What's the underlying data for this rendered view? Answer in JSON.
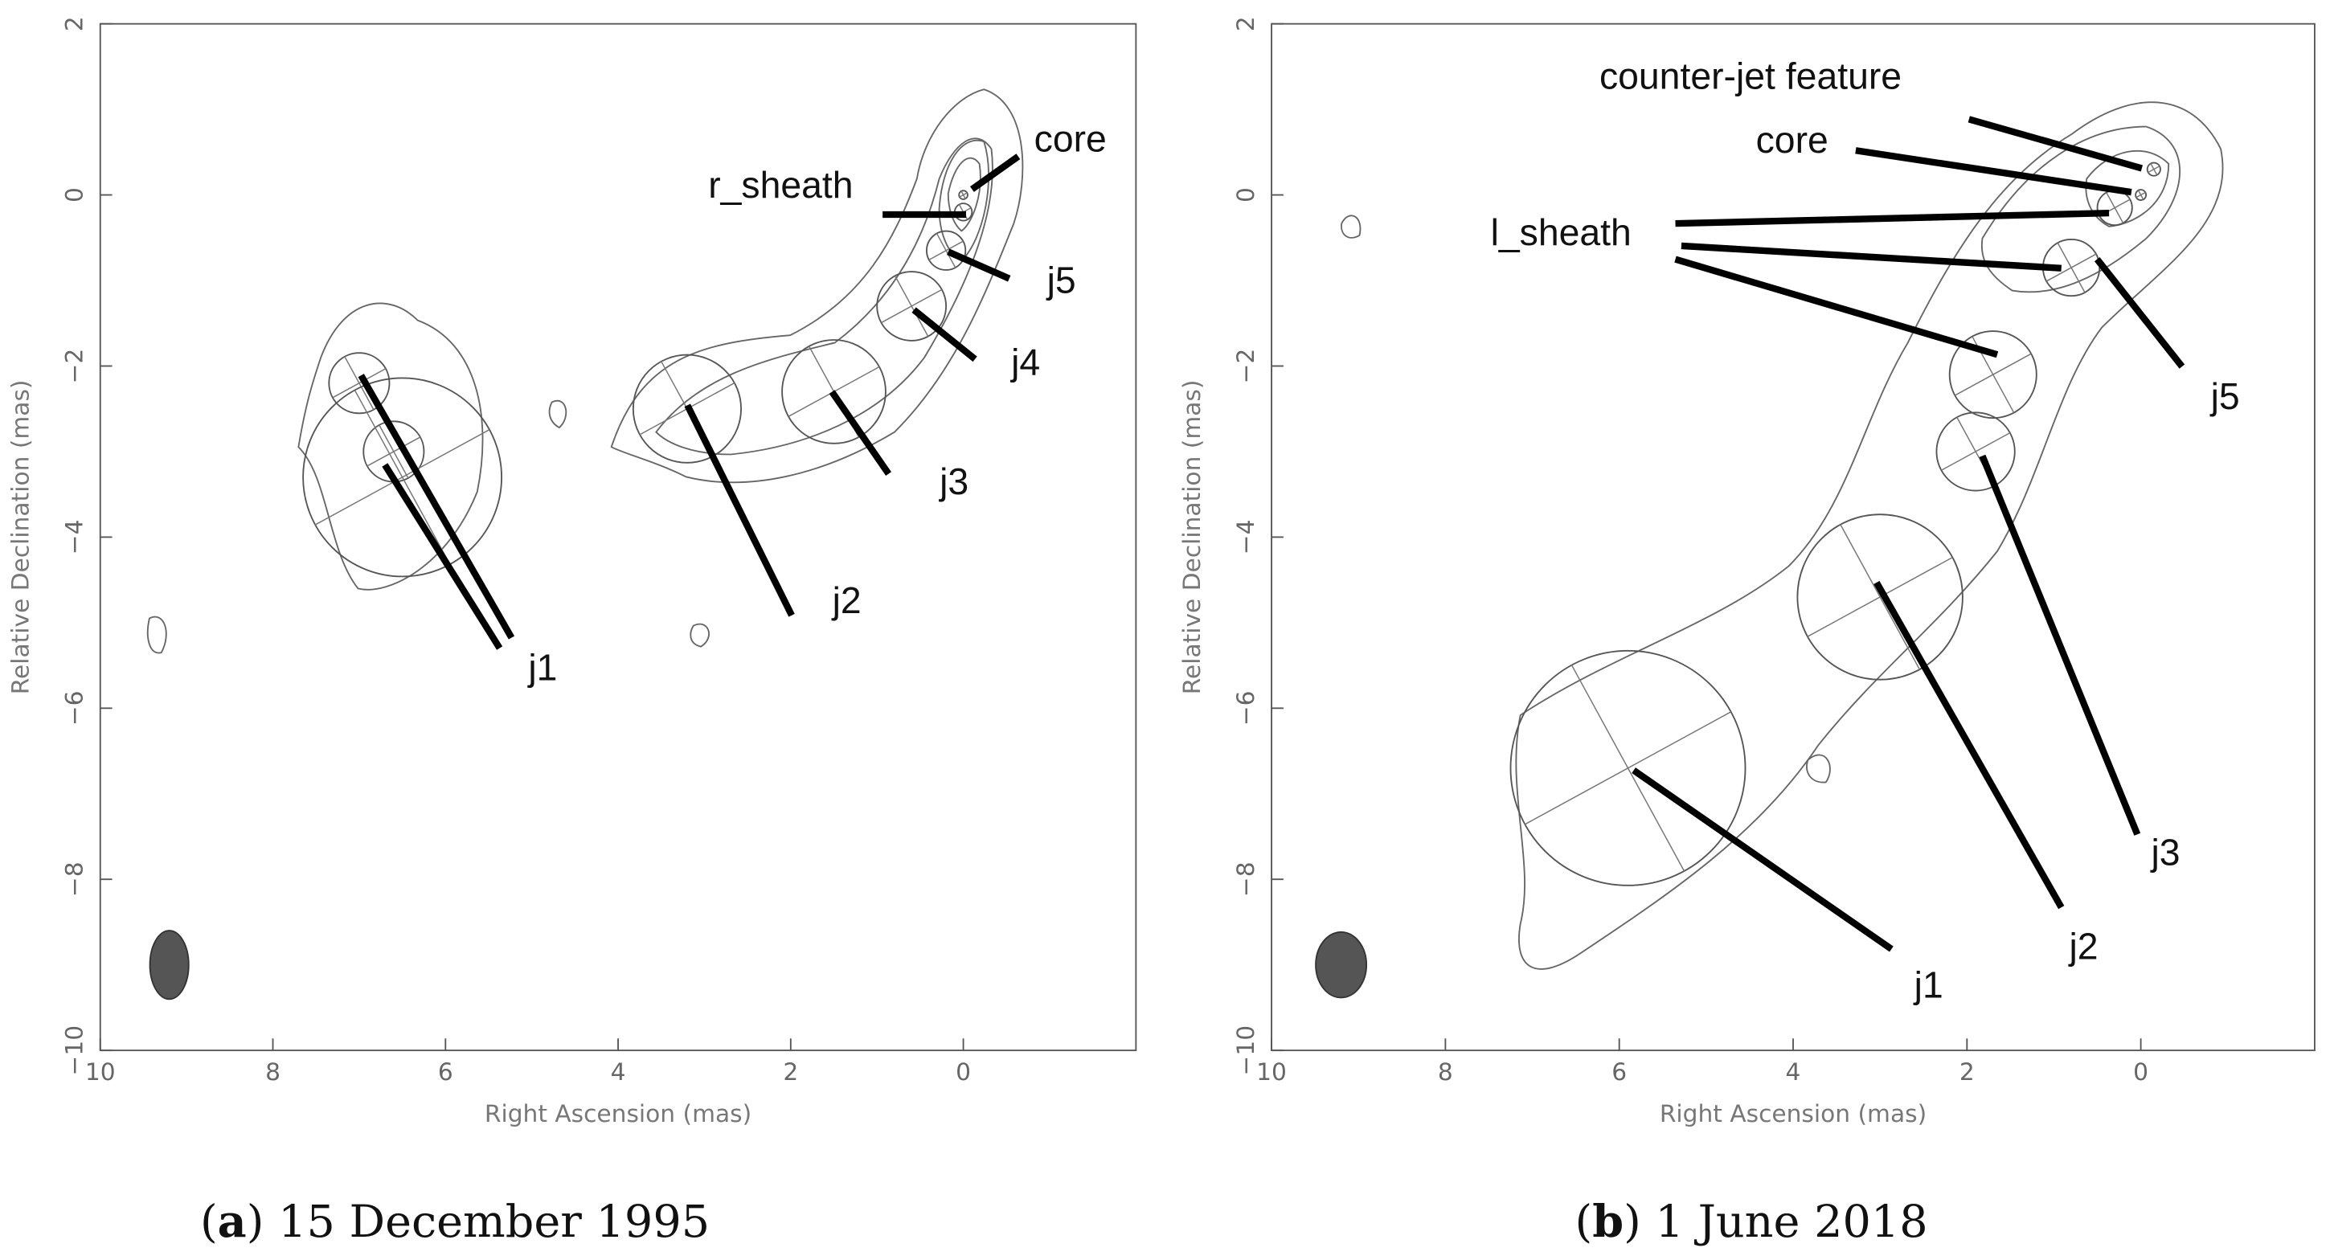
{
  "chart_data": [
    {
      "type": "map",
      "xlabel": "Right Ascension  (mas)",
      "ylabel": "Relative Declination  (mas)",
      "xlim": [
        10,
        -2
      ],
      "ylim": [
        -10,
        2
      ],
      "xticks": [
        10,
        8,
        6,
        4,
        2,
        0
      ],
      "yticks": [
        {
          "value": -10,
          "label": "−10"
        },
        {
          "value": -8,
          "label": "−8"
        },
        {
          "value": -6,
          "label": "−6"
        },
        {
          "value": -4,
          "label": "−4"
        },
        {
          "value": -2,
          "label": "−2"
        },
        0,
        2
      ],
      "caption": [
        "(",
        "a",
        ") 15 December 1995"
      ],
      "annotations": [
        "core",
        "r_sheath",
        "j5",
        "j4",
        "j3",
        "j2",
        "j1"
      ],
      "components": {
        "x": [
          0,
          0,
          0.2,
          0.6,
          1.5,
          3.2,
          7.0,
          6.6,
          6.5
        ],
        "y": [
          0,
          -0.2,
          -0.65,
          -1.3,
          -2.3,
          -2.5,
          -2.2,
          -3.0,
          -3.3
        ],
        "d": [
          0.1,
          0.2,
          0.45,
          0.8,
          1.2,
          1.25,
          0.7,
          0.7,
          2.3
        ]
      }
    },
    {
      "type": "map",
      "xlabel": "Right Ascension  (mas)",
      "ylabel": "Relative Declination  (mas)",
      "xlim": [
        10,
        -2
      ],
      "ylim": [
        -10,
        2
      ],
      "xticks": [
        10,
        8,
        6,
        4,
        2,
        0
      ],
      "yticks": [
        {
          "value": -10,
          "label": "−10"
        },
        {
          "value": -8,
          "label": "−8"
        },
        {
          "value": -6,
          "label": "−6"
        },
        {
          "value": -4,
          "label": "−4"
        },
        {
          "value": -2,
          "label": "−2"
        },
        0,
        2
      ],
      "caption": [
        "(",
        "b",
        ") 1 June 2018"
      ],
      "annotations": [
        "counter-jet feature",
        "core",
        "l_sheath",
        "j5",
        "j3",
        "j2",
        "j1"
      ],
      "components": {
        "x": [
          -0.15,
          0,
          0.3,
          0.8,
          1.7,
          1.9,
          3.0,
          5.9
        ],
        "y": [
          0.3,
          0,
          -0.15,
          -0.85,
          -2.1,
          -3.0,
          -4.7,
          -6.7
        ],
        "d": [
          0.15,
          0.12,
          0.4,
          0.65,
          1.0,
          0.9,
          1.9,
          2.7
        ]
      }
    }
  ]
}
